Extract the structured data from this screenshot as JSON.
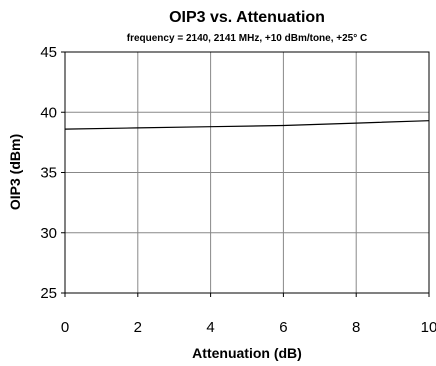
{
  "chart_data": {
    "type": "line",
    "title": "OIP3 vs. Attenuation",
    "subtitle": "frequency = 2140, 2141 MHz, +10 dBm/tone, +25° C",
    "xlabel": "Attenuation (dB)",
    "ylabel": "OIP3 (dBm)",
    "xlim": [
      0,
      10
    ],
    "ylim": [
      25,
      45
    ],
    "xticks": [
      "0",
      "2",
      "4",
      "6",
      "8",
      "10"
    ],
    "yticks": [
      "25",
      "30",
      "35",
      "40",
      "45"
    ],
    "grid": true,
    "legend": "none",
    "series": [
      {
        "color": "#000000",
        "x": [
          0,
          2,
          4,
          6,
          8,
          10
        ],
        "y": [
          38.6,
          38.7,
          38.8,
          38.9,
          39.1,
          39.3
        ]
      }
    ]
  }
}
